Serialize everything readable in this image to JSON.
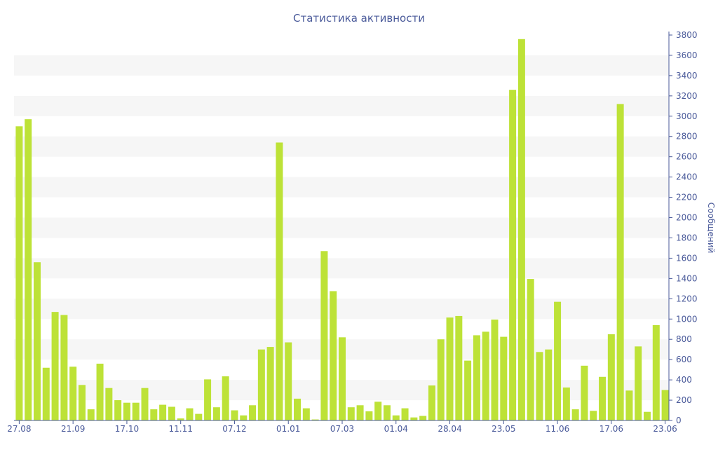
{
  "chart_data": {
    "type": "bar",
    "title": "Статистика активности",
    "ylabel": "Сообщений",
    "xlabel": "",
    "ylim": [
      0,
      3800
    ],
    "y_tick_step": 200,
    "grid": "alternating horizontal bands",
    "bar_color": "#bde237",
    "text_color": "#4a5a9a",
    "x_tick_labels": [
      {
        "label": "27.08",
        "bar_index": 0
      },
      {
        "label": "21.09",
        "bar_index": 6
      },
      {
        "label": "17.10",
        "bar_index": 12
      },
      {
        "label": "11.11",
        "bar_index": 18
      },
      {
        "label": "07.12",
        "bar_index": 24
      },
      {
        "label": "01.01",
        "bar_index": 30
      },
      {
        "label": "07.03",
        "bar_index": 36
      },
      {
        "label": "01.04",
        "bar_index": 42
      },
      {
        "label": "28.04",
        "bar_index": 48
      },
      {
        "label": "23.05",
        "bar_index": 54
      },
      {
        "label": "11.06",
        "bar_index": 60
      },
      {
        "label": "17.06",
        "bar_index": 66
      },
      {
        "label": "23.06",
        "bar_index": 72
      }
    ],
    "values": [
      2900,
      2970,
      1560,
      520,
      1070,
      1040,
      530,
      350,
      110,
      560,
      320,
      200,
      175,
      175,
      320,
      110,
      155,
      135,
      20,
      120,
      65,
      405,
      130,
      435,
      100,
      50,
      150,
      700,
      725,
      2740,
      770,
      215,
      120,
      10,
      1670,
      1275,
      820,
      130,
      150,
      90,
      185,
      150,
      50,
      120,
      30,
      45,
      345,
      800,
      1015,
      1030,
      590,
      840,
      875,
      995,
      825,
      3260,
      3760,
      1395,
      675,
      700,
      1170,
      325,
      110,
      540,
      95,
      430,
      850,
      3120,
      295,
      730,
      85,
      940,
      300
    ]
  }
}
